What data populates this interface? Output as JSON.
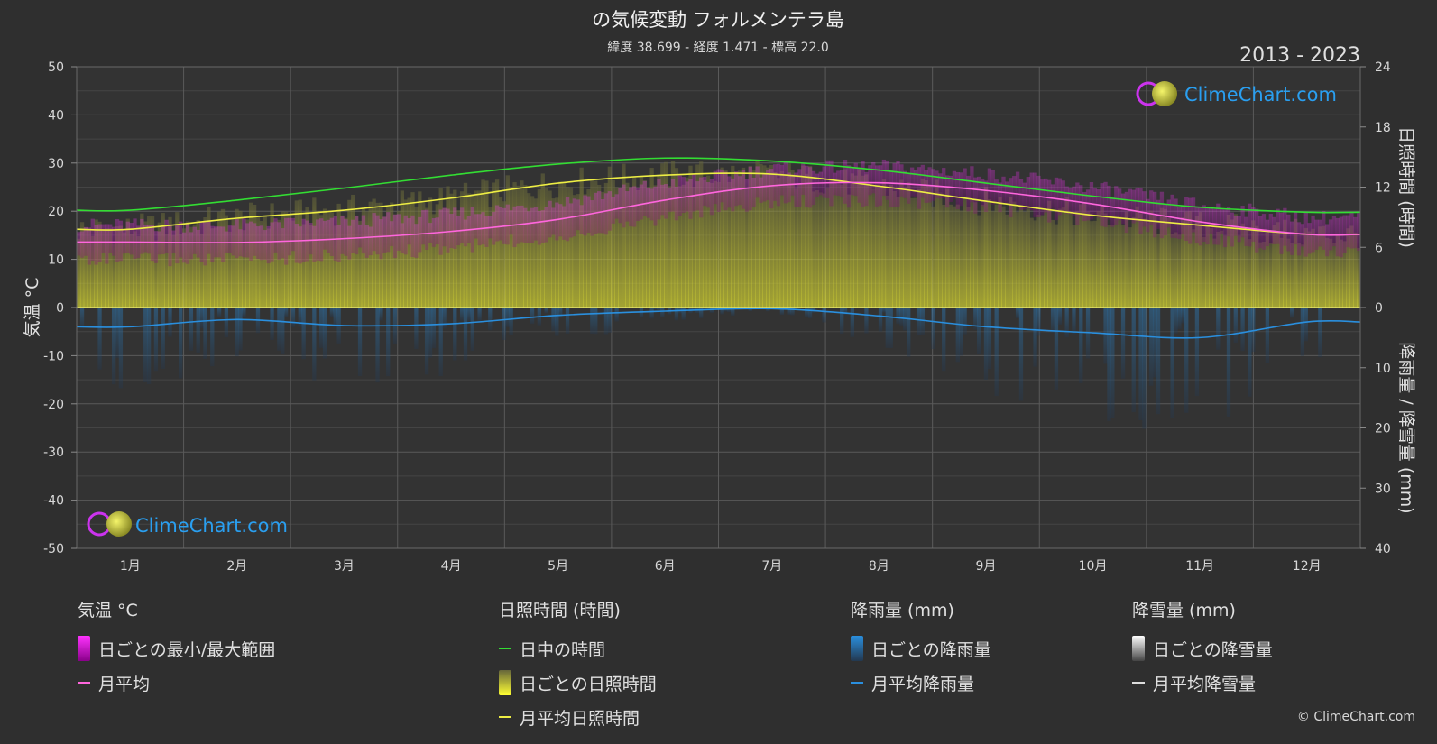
{
  "header": {
    "title": "の気候変動 フォルメンテラ島",
    "subtitle": "緯度 38.699 - 経度 1.471 - 標高 22.0",
    "period": "2013 - 2023"
  },
  "logo": {
    "text": "ClimeChart.com"
  },
  "copyright": "© ClimeChart.com",
  "chart_data": {
    "type": "line",
    "x": [
      "1月",
      "2月",
      "3月",
      "4月",
      "5月",
      "6月",
      "7月",
      "8月",
      "9月",
      "10月",
      "11月",
      "12月"
    ],
    "y_left": {
      "label": "気温 °C",
      "range": [
        -50,
        50
      ],
      "ticks": [
        50,
        40,
        30,
        20,
        10,
        0,
        -10,
        -20,
        -30,
        -40,
        -50
      ]
    },
    "y_right_top": {
      "label": "日照時間 (時間)",
      "range": [
        0,
        24
      ],
      "ticks": [
        24,
        18,
        12,
        6,
        0
      ]
    },
    "y_right_bottom": {
      "label": "降雨量 / 降雪量 (mm)",
      "range": [
        0,
        40
      ],
      "ticks": [
        10,
        20,
        30,
        40
      ]
    },
    "grid": true,
    "series": [
      {
        "name": "日中の時間",
        "unit": "hours",
        "color": "#33dd33",
        "values": [
          9.7,
          10.7,
          11.9,
          13.2,
          14.3,
          14.9,
          14.6,
          13.7,
          12.4,
          11.1,
          10.0,
          9.5
        ]
      },
      {
        "name": "月平均日照時間",
        "unit": "hours",
        "color": "#eeee44",
        "values": [
          7.8,
          8.9,
          9.7,
          10.9,
          12.4,
          13.2,
          13.3,
          12.1,
          10.6,
          9.2,
          8.2,
          7.3
        ]
      },
      {
        "name": "月平均",
        "unit": "°C",
        "color": "#ff66dd",
        "values": [
          13.6,
          13.5,
          14.3,
          15.8,
          18.3,
          22.3,
          25.3,
          25.9,
          24.3,
          21.5,
          17.8,
          15.2
        ]
      },
      {
        "name": "月平均降雨量",
        "unit": "mm",
        "color": "#2a8fde",
        "values": [
          3.2,
          2.0,
          3.0,
          2.7,
          1.3,
          0.6,
          0.2,
          1.4,
          3.2,
          4.2,
          5.0,
          2.4
        ]
      }
    ]
  },
  "legend": {
    "temp": {
      "title": "気温 °C",
      "range": "日ごとの最小/最大範囲",
      "avg": "月平均",
      "range_color": "#d400d4",
      "avg_color": "#ff66dd"
    },
    "sun": {
      "title": "日照時間 (時間)",
      "daylight": "日中の時間",
      "daily": "日ごとの日照時間",
      "avg": "月平均日照時間",
      "daylight_color": "#33dd33",
      "daily_color": "#c8c83a",
      "avg_color": "#eeee44"
    },
    "rain": {
      "title": "降雨量 (mm)",
      "daily": "日ごとの降雨量",
      "avg": "月平均降雨量",
      "color": "#2a8fde"
    },
    "snow": {
      "title": "降雪量 (mm)",
      "daily": "日ごとの降雪量",
      "avg": "月平均降雪量",
      "color": "#dddddd"
    }
  }
}
